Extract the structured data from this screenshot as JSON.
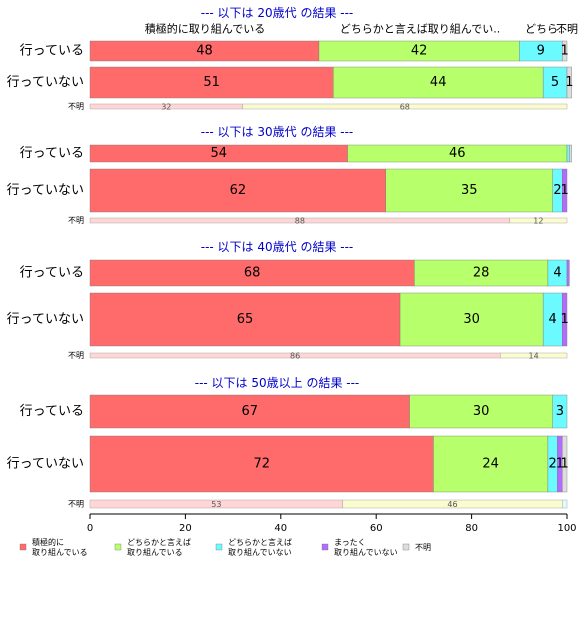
{
  "chart_data": {
    "type": "bar",
    "orientation": "horizontal",
    "stacked": "percent",
    "xlim": [
      0,
      100
    ],
    "x_ticks": [
      "0",
      "20",
      "40",
      "60",
      "80",
      "100"
    ],
    "legend_placement": "bottom",
    "categories": [
      "積極的に\n取り組んでいる",
      "どちらかと言えば\n取り組んでいる",
      "どちらかと言えば\n取り組んでいない",
      "まったく\n取り組んでいない",
      "不明"
    ],
    "colors": [
      "#ff6b6b",
      "#b7ff6b",
      "#6bfaff",
      "#b36bff",
      "#dddddd"
    ],
    "header_labels": [
      "積極的に取り組んでいる",
      "どちらかと言えば取り組んでい..",
      "どちら..",
      "不明"
    ],
    "panels": [
      {
        "title": "--- 以下は 20歳代 の結果 ---",
        "rows": [
          {
            "label": "行っている",
            "values": [
              48,
              42,
              9,
              0,
              1
            ]
          },
          {
            "label": "行っていない",
            "values": [
              51,
              44,
              5,
              0,
              1
            ]
          }
        ],
        "unknown": {
          "label": "不明",
          "values": [
            32,
            68
          ]
        }
      },
      {
        "title": "--- 以下は 30歳代 の結果 ---",
        "rows": [
          {
            "label": "行っている",
            "values": [
              54,
              46,
              0.5,
              0,
              0.5
            ]
          },
          {
            "label": "行っていない",
            "values": [
              62,
              35,
              2,
              1,
              0
            ]
          }
        ],
        "unknown": {
          "label": "不明",
          "values": [
            88,
            12
          ]
        }
      },
      {
        "title": "--- 以下は 40歳代 の結果 ---",
        "rows": [
          {
            "label": "行っている",
            "values": [
              68,
              28,
              4,
              0.5,
              0
            ]
          },
          {
            "label": "行っていない",
            "values": [
              65,
              30,
              4,
              1,
              0
            ]
          }
        ],
        "unknown": {
          "label": "不明",
          "values": [
            86,
            14
          ]
        }
      },
      {
        "title": "--- 以下は 50歳以上 の結果 ---",
        "rows": [
          {
            "label": "行っている",
            "values": [
              67,
              30,
              3,
              0,
              0
            ]
          },
          {
            "label": "行っていない",
            "values": [
              72,
              24,
              2,
              1,
              1
            ]
          }
        ],
        "unknown": {
          "label": "不明",
          "values": [
            53,
            46,
            1
          ]
        }
      }
    ]
  }
}
